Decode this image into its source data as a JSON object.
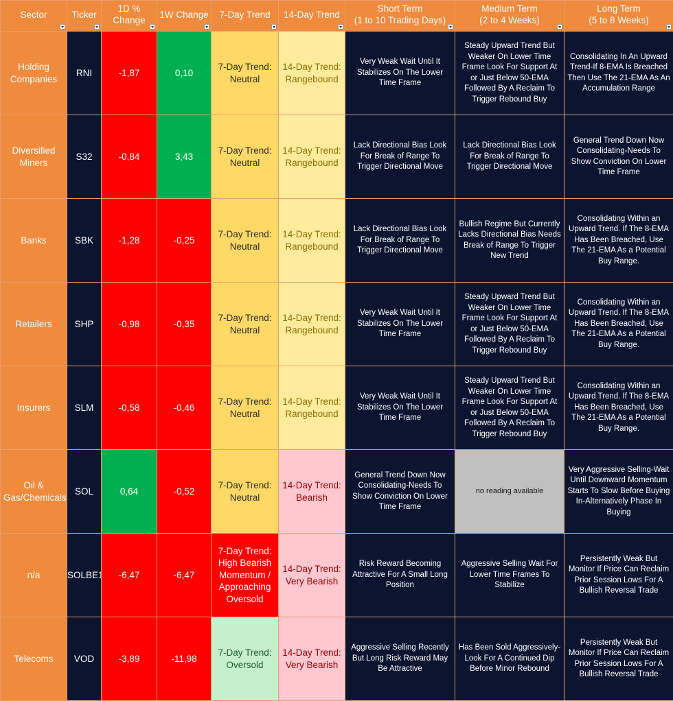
{
  "headers": {
    "sector": "Sector",
    "ticker": "Ticker",
    "d1": "1D % Change",
    "w1": "1W Change",
    "t7": "7-Day Trend",
    "t14": "14-Day Trend",
    "short_l1": "Short Term",
    "short_l2": "(1 to 10 Trading Days)",
    "medium_l1": "Medium Term",
    "medium_l2": "(2 to 4 Weeks)",
    "long_l1": "Long Term",
    "long_l2": "(5 to 8 Weeks)"
  },
  "colors": {
    "header_orange": "#f08a3c",
    "navy": "#0b1530",
    "red": "#ff0000",
    "green": "#00b050",
    "yellow": "#ffd966",
    "light_yellow": "#ffeb9c",
    "pink": "#ffc7ce",
    "mint": "#c6efce",
    "grey": "#c0c0c0"
  },
  "rows": [
    {
      "sector": "Holding Companies",
      "ticker": "RNI",
      "d1": "-1,87",
      "d1_color": "red",
      "w1": "0,10",
      "w1_color": "green",
      "t7": "7-Day Trend: Neutral",
      "t7_style": "yellow",
      "t14": "14-Day Trend: Rangebound",
      "t14_style": "light_yellow",
      "short": "Very Weak Wait Until It Stabilizes On The Lower Time Frame",
      "medium": "Steady Upward Trend But Weaker On Lower Time Frame Look For Support At or Just Below 50-EMA Followed By A Reclaim To Trigger Rebound Buy",
      "medium_na": false,
      "long": "Consolidating In An Upward Trend-If 8-EMA Is Breached Then Use The 21-EMA As An Accumulation Range"
    },
    {
      "sector": "Diversified Miners",
      "ticker": "S32",
      "d1": "-0,84",
      "d1_color": "red",
      "w1": "3,43",
      "w1_color": "green",
      "t7": "7-Day Trend: Neutral",
      "t7_style": "yellow",
      "t14": "14-Day Trend: Rangebound",
      "t14_style": "light_yellow",
      "short": "Lack Directional Bias Look For Break of Range To Trigger Directional Move",
      "medium": "Lack Directional Bias Look For Break of Range To Trigger Directional Move",
      "medium_na": false,
      "long": "General Trend Down Now Consolidating-Needs To Show Conviction On Lower Time Frame"
    },
    {
      "sector": "Banks",
      "ticker": "SBK",
      "d1": "-1,28",
      "d1_color": "red",
      "w1": "-0,25",
      "w1_color": "red",
      "t7": "7-Day Trend: Neutral",
      "t7_style": "yellow",
      "t14": "14-Day Trend: Rangebound",
      "t14_style": "light_yellow",
      "short": "Lack Directional Bias Look For Break of Range To Trigger Directional Move",
      "medium": "Bullish Regime But Currently Lacks Directional Bias Needs Break of Range To Trigger New Trend",
      "medium_na": false,
      "long": "Consolidating Within an Upward Trend. If The 8-EMA Has Been Breached, Use The 21-EMA As a Potential Buy Range."
    },
    {
      "sector": "Retailers",
      "ticker": "SHP",
      "d1": "-0,98",
      "d1_color": "red",
      "w1": "-0,35",
      "w1_color": "red",
      "t7": "7-Day Trend: Neutral",
      "t7_style": "yellow",
      "t14": "14-Day Trend: Rangebound",
      "t14_style": "light_yellow",
      "short": "Very Weak Wait Until It Stabilizes On The Lower Time Frame",
      "medium": "Steady Upward Trend But Weaker On Lower Time Frame Look For Support At or Just Below 50-EMA Followed By A Reclaim To Trigger Rebound Buy",
      "medium_na": false,
      "long": "Consolidating Within an Upward Trend. If The 8-EMA Has Been Breached, Use The 21-EMA As a Potential Buy Range."
    },
    {
      "sector": "Insurers",
      "ticker": "SLM",
      "d1": "-0,58",
      "d1_color": "red",
      "w1": "-0,46",
      "w1_color": "red",
      "t7": "7-Day Trend: Neutral",
      "t7_style": "yellow",
      "t14": "14-Day Trend: Rangebound",
      "t14_style": "light_yellow",
      "short": "Very Weak Wait Until It Stabilizes On The Lower Time Frame",
      "medium": "Steady Upward Trend But Weaker On Lower Time Frame Look For Support At or Just Below 50-EMA Followed By A Reclaim To Trigger Rebound Buy",
      "medium_na": false,
      "long": "Consolidating Within an Upward Trend. If The 8-EMA Has Been Breached, Use The 21-EMA As a Potential Buy Range."
    },
    {
      "sector": "Oil & Gas/Chemicals",
      "ticker": "SOL",
      "d1": "0,64",
      "d1_color": "green",
      "w1": "-0,52",
      "w1_color": "red",
      "t7": "7-Day Trend: Neutral",
      "t7_style": "yellow",
      "t14": "14-Day Trend: Bearish",
      "t14_style": "pink",
      "short": "General Trend Down Now Consolidating-Needs To Show Conviction On Lower Time Frame",
      "medium": "no reading available",
      "medium_na": true,
      "long": "Very Aggressive Selling-Wait Until Downward Momentum Starts To Slow Before Buying In-Alternatively Phase In Buying"
    },
    {
      "sector": "n/a",
      "ticker": "SOLBE1",
      "d1": "-6,47",
      "d1_color": "red",
      "w1": "-6,47",
      "w1_color": "red",
      "t7": "7-Day Trend: High Bearish Momentum / Approaching Oversold",
      "t7_style": "red",
      "t14": "14-Day Trend: Very Bearish",
      "t14_style": "pink",
      "short": "Risk Reward Becoming Attractive For A Small Long Position",
      "medium": "Aggressive Selling Wait For Lower Time Frames To Stabilize",
      "medium_na": false,
      "long": "Persistently Weak But Monitor If Price Can Reclaim Prior Session Lows For A Bullish Reversal Trade"
    },
    {
      "sector": "Telecoms",
      "ticker": "VOD",
      "d1": "-3,89",
      "d1_color": "red",
      "w1": "-11,98",
      "w1_color": "red",
      "t7": "7-Day Trend: Oversold",
      "t7_style": "mint",
      "t14": "14-Day Trend: Very Bearish",
      "t14_style": "pink",
      "short": "Aggressive Selling Recently But Long Risk Reward May Be Attractive",
      "medium": "Has Been Sold Aggressively-Look For A Continued Dip Before Minor Rebound",
      "medium_na": false,
      "long": "Persistently Weak But Monitor If Price Can Reclaim Prior Session Lows For A Bullish Reversal Trade"
    }
  ]
}
